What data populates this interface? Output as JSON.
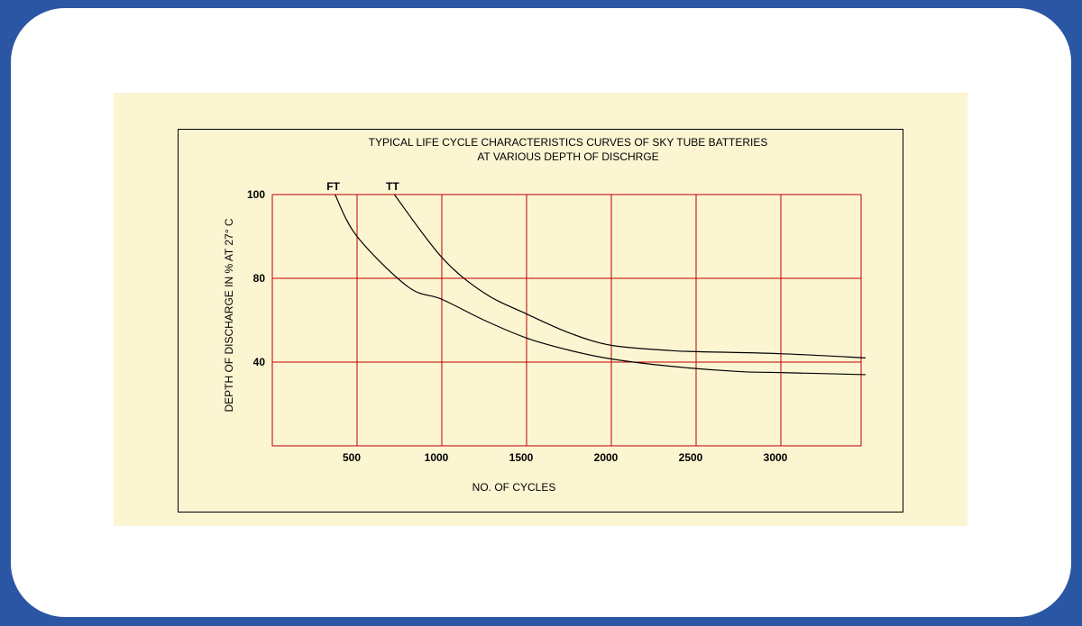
{
  "chart_data": {
    "type": "line",
    "title": "TYPICAL LIFE CYCLE CHARACTERISTICS CURVES OF SKY TUBE BATTERIES",
    "subtitle": "AT VARIOUS DEPTH OF DISCHRGE",
    "xlabel": "NO. OF CYCLES",
    "ylabel": "DEPTH OF DISCHARGE IN % AT 27° C",
    "x_ticks": [
      500,
      1000,
      1500,
      2000,
      2500,
      3000
    ],
    "y_ticks": [
      100,
      80,
      40
    ],
    "grid": true,
    "grid_color": "#c00000",
    "line_color": "#000000",
    "series": [
      {
        "name": "FT",
        "x": [
          370,
          500,
          800,
          1000,
          1250,
          1500,
          1750,
          2000,
          2350,
          2750,
          3000,
          3500
        ],
        "y": [
          100,
          90,
          76,
          70,
          60,
          51.5,
          45.7,
          41.5,
          38,
          35.5,
          35,
          34
        ]
      },
      {
        "name": "TT",
        "x": [
          720,
          1000,
          1250,
          1500,
          1750,
          2000,
          2350,
          2500,
          3000,
          3500
        ],
        "y": [
          100,
          85,
          73,
          63,
          54,
          48,
          45.5,
          45,
          44,
          42
        ]
      }
    ]
  }
}
